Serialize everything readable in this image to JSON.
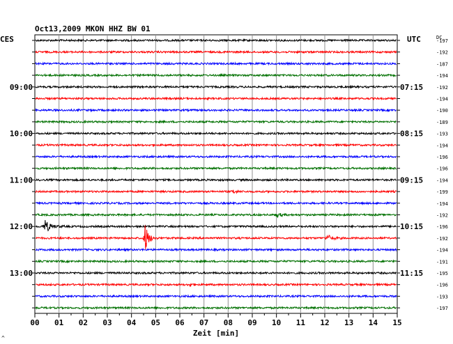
{
  "chart_data": {
    "type": "line",
    "title": "Oct13,2009   MKON HHZ BW 01",
    "xlabel": "Zeit [min]",
    "x_ticks": [
      "00",
      "01",
      "02",
      "03",
      "04",
      "05",
      "06",
      "07",
      "08",
      "09",
      "10",
      "11",
      "12",
      "13",
      "14",
      "15"
    ],
    "xlim": [
      0,
      15
    ],
    "left_axis_label": "CES",
    "right_axis_label": "UTC",
    "dc_label": "DC",
    "left_time_labels": [
      {
        "row": 4,
        "label": "09:00"
      },
      {
        "row": 8,
        "label": "10:00"
      },
      {
        "row": 12,
        "label": "11:00"
      },
      {
        "row": 16,
        "label": "12:00"
      },
      {
        "row": 20,
        "label": "13:00"
      }
    ],
    "right_time_labels": [
      {
        "row": 4,
        "label": "07:15"
      },
      {
        "row": 8,
        "label": "08:15"
      },
      {
        "row": 12,
        "label": "09:15"
      },
      {
        "row": 16,
        "label": "10:15"
      },
      {
        "row": 20,
        "label": "11:15"
      }
    ],
    "dc_offsets": [
      "-197",
      "-192",
      "-187",
      "-194",
      "-192",
      "-194",
      "-190",
      "-189",
      "-193",
      "-194",
      "-196",
      "-196",
      "-194",
      "-199",
      "-194",
      "-192",
      "-196",
      "-192",
      "-194",
      "-191",
      "-195",
      "-196",
      "-193",
      "-197"
    ],
    "trace_colors": [
      "#000000",
      "#ff0000",
      "#0000ff",
      "#007000"
    ],
    "events": [
      {
        "row": 16,
        "minute": 0.4,
        "amplitude": 10,
        "duration": 1.0
      },
      {
        "row": 17,
        "minute": 4.55,
        "amplitude": 26,
        "duration": 0.6
      },
      {
        "row": 17,
        "minute": 12.1,
        "amplitude": 5,
        "duration": 0.9
      },
      {
        "row": 15,
        "minute": 10.0,
        "amplitude": 3,
        "duration": 0.9
      },
      {
        "row": 13,
        "minute": 8.2,
        "amplitude": 3,
        "duration": 0.6
      },
      {
        "row": 21,
        "minute": 6.4,
        "amplitude": 3,
        "duration": 0.5
      }
    ]
  },
  "corner_mark": "^"
}
